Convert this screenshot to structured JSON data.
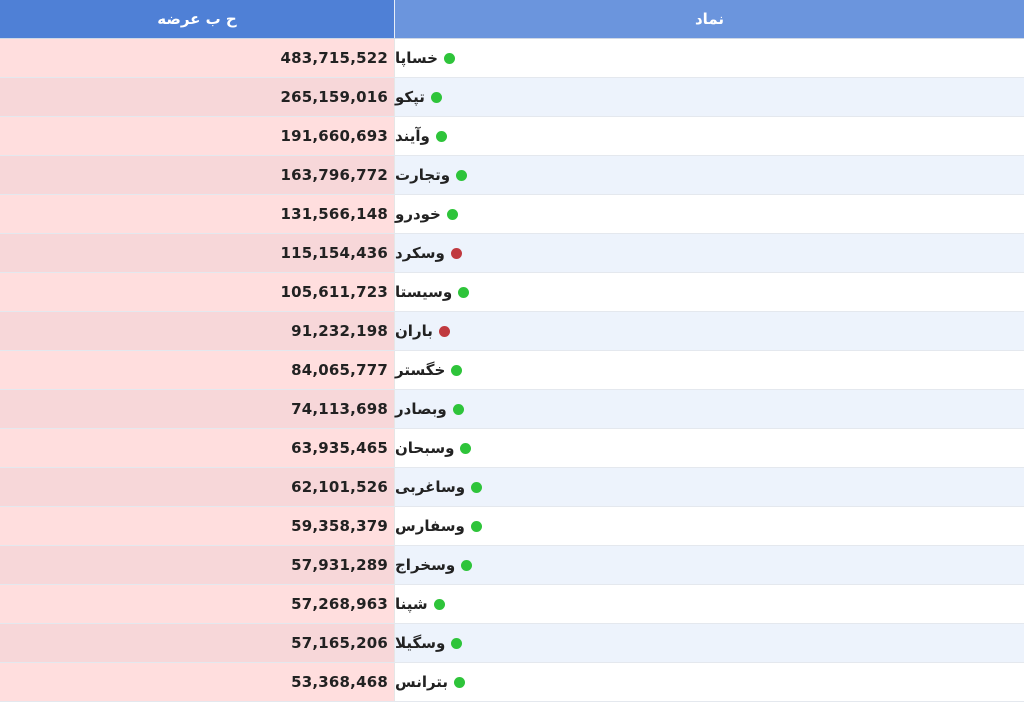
{
  "header": {
    "volume_label": "ح ب عرضه",
    "symbol_label": "نماد"
  },
  "colors": {
    "green": "#2ec43a",
    "red": "#c0393f"
  },
  "rows": [
    {
      "symbol": "خساپا",
      "volume": "483,715,522",
      "status": "green"
    },
    {
      "symbol": "تپکو",
      "volume": "265,159,016",
      "status": "green"
    },
    {
      "symbol": "وآیند",
      "volume": "191,660,693",
      "status": "green"
    },
    {
      "symbol": "وتجارت",
      "volume": "163,796,772",
      "status": "green"
    },
    {
      "symbol": "خودرو",
      "volume": "131,566,148",
      "status": "green"
    },
    {
      "symbol": "وسکرد",
      "volume": "115,154,436",
      "status": "red"
    },
    {
      "symbol": "وسیستا",
      "volume": "105,611,723",
      "status": "green"
    },
    {
      "symbol": "باران",
      "volume": "91,232,198",
      "status": "red"
    },
    {
      "symbol": "خگستر",
      "volume": "84,065,777",
      "status": "green"
    },
    {
      "symbol": "وبصادر",
      "volume": "74,113,698",
      "status": "green"
    },
    {
      "symbol": "وسبحان",
      "volume": "63,935,465",
      "status": "green"
    },
    {
      "symbol": "وساغربی",
      "volume": "62,101,526",
      "status": "green"
    },
    {
      "symbol": "وسفارس",
      "volume": "59,358,379",
      "status": "green"
    },
    {
      "symbol": "وسخراج",
      "volume": "57,931,289",
      "status": "green"
    },
    {
      "symbol": "شپنا",
      "volume": "57,268,963",
      "status": "green"
    },
    {
      "symbol": "وسگیلا",
      "volume": "57,165,206",
      "status": "green"
    },
    {
      "symbol": "بترانس",
      "volume": "53,368,468",
      "status": "green"
    }
  ]
}
